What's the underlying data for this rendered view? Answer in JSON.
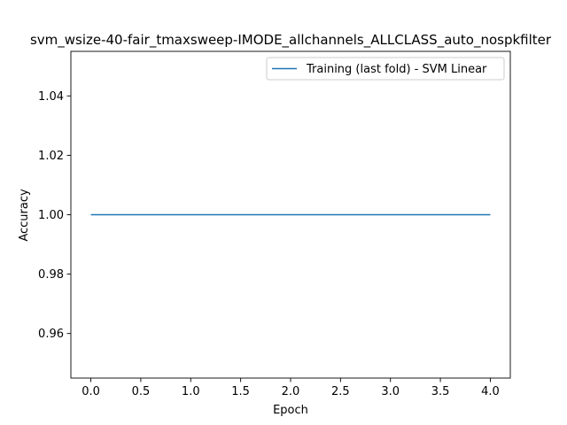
{
  "chart_data": {
    "type": "line",
    "title": "svm_wsize-40-fair_tmaxsweep-IMODE_allchannels_ALLCLASS_auto_nospkfilter",
    "xlabel": "Epoch",
    "ylabel": "Accuracy",
    "xlim": [
      -0.2,
      4.2
    ],
    "ylim": [
      0.945,
      1.055
    ],
    "xticks": [
      0.0,
      0.5,
      1.0,
      1.5,
      2.0,
      2.5,
      3.0,
      3.5,
      4.0
    ],
    "xtick_labels": [
      "0.0",
      "0.5",
      "1.0",
      "1.5",
      "2.0",
      "2.5",
      "3.0",
      "3.5",
      "4.0"
    ],
    "yticks": [
      0.96,
      0.98,
      1.0,
      1.02,
      1.04
    ],
    "ytick_labels": [
      "0.96",
      "0.98",
      "1.00",
      "1.02",
      "1.04"
    ],
    "grid": false,
    "legend_position": "top-right",
    "series": [
      {
        "name": "Training (last fold) - SVM Linear",
        "color": "#1f77b4",
        "x": [
          0,
          1,
          2,
          3,
          4
        ],
        "y": [
          1.0,
          1.0,
          1.0,
          1.0,
          1.0
        ]
      }
    ]
  }
}
